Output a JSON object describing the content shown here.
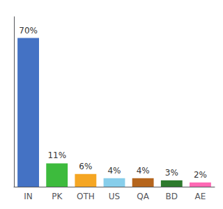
{
  "chart_data": {
    "type": "bar",
    "categories": [
      "IN",
      "PK",
      "OTH",
      "US",
      "QA",
      "BD",
      "AE"
    ],
    "values": [
      70,
      11,
      6,
      4,
      4,
      3,
      2
    ],
    "value_labels": [
      "70%",
      "11%",
      "6%",
      "4%",
      "4%",
      "3%",
      "2%"
    ],
    "colors": [
      "#4472c4",
      "#3dbb3d",
      "#f5a623",
      "#87ceeb",
      "#b5651d",
      "#2d7a2d",
      "#ff69b4"
    ],
    "ylim": [
      0,
      80
    ],
    "grid": false,
    "data_labels": true,
    "tick_labels": "x"
  }
}
